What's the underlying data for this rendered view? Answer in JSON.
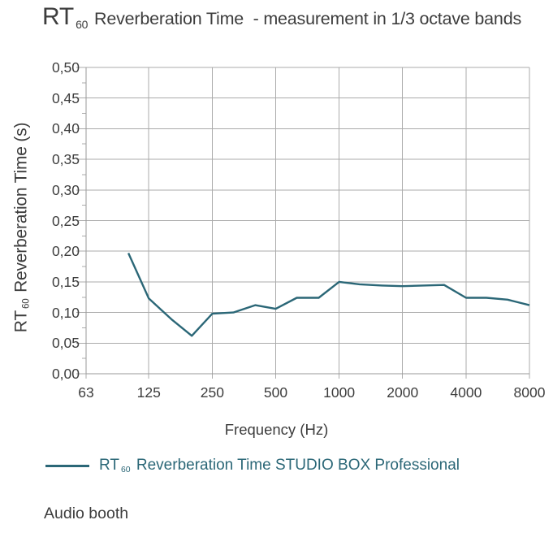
{
  "colors": {
    "accent_teal": "#2b6777",
    "text_dark": "#3d3d3d",
    "grid_gray": "#ababab",
    "axis_gray": "#9a9a9a"
  },
  "chart_data": {
    "type": "line",
    "title": "RT 60 Reverberation Time  - measurement in 1/3 octave bands",
    "title_parts": {
      "prefix": "RT",
      "sub": "60",
      "rest": " Reverberation Time  - measurement in 1/3 octave bands"
    },
    "xlabel": "Frequency (Hz)",
    "ylabel": "RT 60 Reverberation Time (s)",
    "ylabel_parts": {
      "prefix": "RT",
      "sub": "60",
      "rest": " Reverberation Time (s)"
    },
    "legend": "RT 60 Reverberation Time STUDIO BOX Professional",
    "legend_parts": {
      "prefix": "RT",
      "sub": "60",
      "rest": " Reverberation Time STUDIO BOX Professional"
    },
    "legend_position": "bottom",
    "x_scale": "log",
    "grid": true,
    "xlim": [
      63,
      8000
    ],
    "ylim": [
      0.0,
      0.5
    ],
    "y_tick_step": 0.05,
    "x_tick_labels": [
      "63",
      "125",
      "250",
      "500",
      "1000",
      "2000",
      "4000",
      "8000"
    ],
    "y_tick_labels": [
      "0,00",
      "0,05",
      "0,10",
      "0,15",
      "0,20",
      "0,25",
      "0,30",
      "0,35",
      "0,40",
      "0,45",
      "0,50"
    ],
    "x_frequencies_hz": [
      100,
      125,
      160,
      200,
      250,
      315,
      400,
      500,
      630,
      800,
      1000,
      1250,
      1600,
      2000,
      2500,
      3150,
      4000,
      5000,
      6300,
      8000
    ],
    "rt60_seconds": [
      0.197,
      0.123,
      0.089,
      0.062,
      0.098,
      0.1,
      0.112,
      0.106,
      0.124,
      0.124,
      0.15,
      0.146,
      0.144,
      0.143,
      0.144,
      0.145,
      0.124,
      0.124,
      0.121,
      0.112
    ],
    "line_color": "#2b6777"
  },
  "footer": {
    "caption": "Audio booth"
  }
}
